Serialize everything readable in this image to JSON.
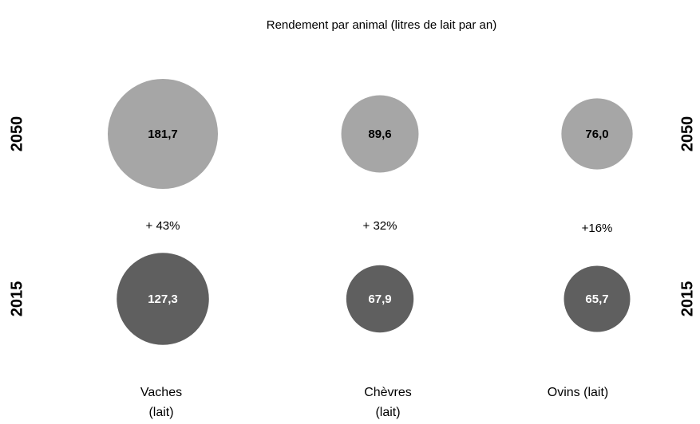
{
  "chart_data": {
    "type": "bubble",
    "title": "Rendement par animal (litres de lait par an)",
    "categories": [
      "Vaches (lait)",
      "Chèvres (lait)",
      "Ovins (lait)"
    ],
    "series": [
      {
        "name": "2050",
        "color": "#a6a6a6",
        "values": [
          181.7,
          89.6,
          76.0
        ],
        "value_labels": [
          "181,7",
          "89,6",
          "76,0"
        ]
      },
      {
        "name": "2015",
        "color": "#5f5f5f",
        "values": [
          127.3,
          67.9,
          65.7
        ],
        "value_labels": [
          "127,3",
          "67,9",
          "65,7"
        ]
      }
    ],
    "annotations": [
      "+ 43%",
      "+ 32%",
      "+16%"
    ]
  }
}
